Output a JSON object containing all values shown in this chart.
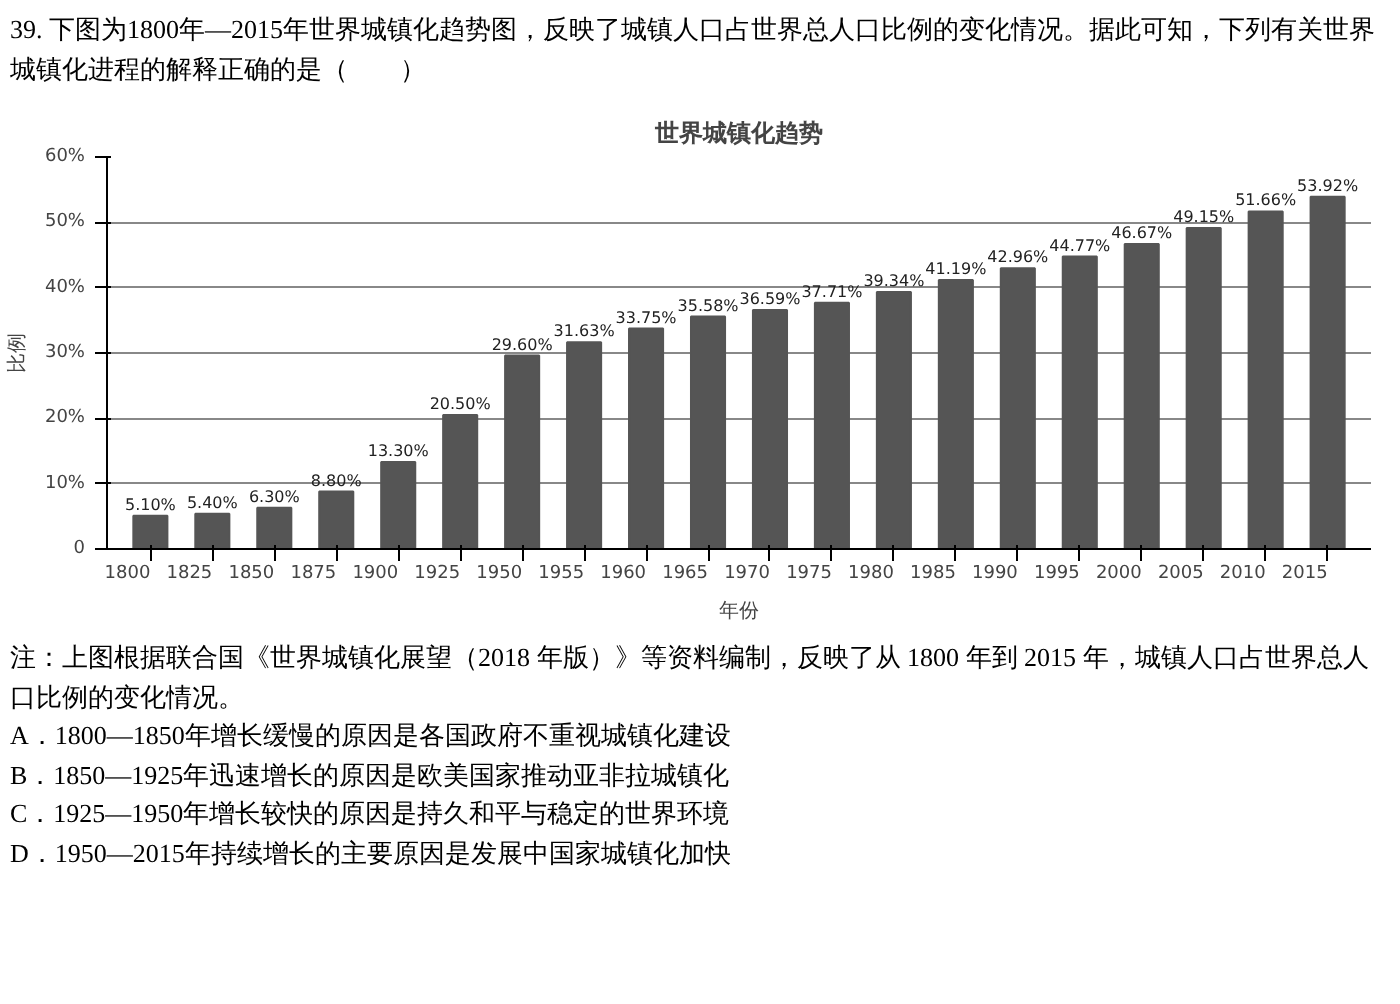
{
  "chart_data": {
    "type": "bar",
    "title": "世界城镇化趋势",
    "ylabel": "比例",
    "xlabel": "年份",
    "categories": [
      "1800",
      "1825",
      "1850",
      "1875",
      "1900",
      "1925",
      "1950",
      "1955",
      "1960",
      "1965",
      "1970",
      "1975",
      "1980",
      "1985",
      "1990",
      "1995",
      "2000",
      "2005",
      "2010",
      "2015"
    ],
    "values": [
      5.1,
      5.4,
      6.3,
      8.8,
      13.3,
      20.5,
      29.6,
      31.63,
      33.75,
      35.58,
      36.59,
      37.71,
      39.34,
      41.19,
      42.96,
      44.77,
      46.67,
      49.15,
      51.66,
      53.92
    ],
    "value_labels": [
      "5.10%",
      "5.40%",
      "6.30%",
      "8.80%",
      "13.30%",
      "20.50%",
      "29.60%",
      "31.63%",
      "33.75%",
      "35.58%",
      "36.59%",
      "37.71%",
      "39.34%",
      "41.19%",
      "42.96%",
      "44.77%",
      "46.67%",
      "49.15%",
      "51.66%",
      "53.92%"
    ],
    "color": "#555555",
    "ylim": [
      0,
      60
    ],
    "yticks": [
      {
        "value": 0,
        "label": "0"
      },
      {
        "value": 10,
        "label": "10%"
      },
      {
        "value": 20,
        "label": "20%"
      },
      {
        "value": 30,
        "label": "30%"
      },
      {
        "value": 40,
        "label": "40%"
      },
      {
        "value": 50,
        "label": "50%"
      },
      {
        "value": 60,
        "label": "60%"
      }
    ],
    "grid": "y",
    "annotations": [
      "39. 下图为1800年—2015年世界城镇化趋势图，反映了城镇人口占世界总人口比例的变化情况。据此可知，下列有关世界城镇化进程的解释正确的是（　　）",
      "注：上图根据联合国《世界城镇化展望（2018 年版）》等资料编制，反映了从 1800 年到 2015 年，城镇人口占世界总人口比例的变化情况。",
      "A．1800—1850年增长缓慢的原因是各国政府不重视城镇化建设",
      "B．1850—1925年迅速增长的原因是欧美国家推动亚非拉城镇化",
      "C．1925—1950年增长较快的原因是持久和平与稳定的世界环境",
      "D．1950—2015年持续增长的主要原因是发展中国家城镇化加快"
    ]
  }
}
